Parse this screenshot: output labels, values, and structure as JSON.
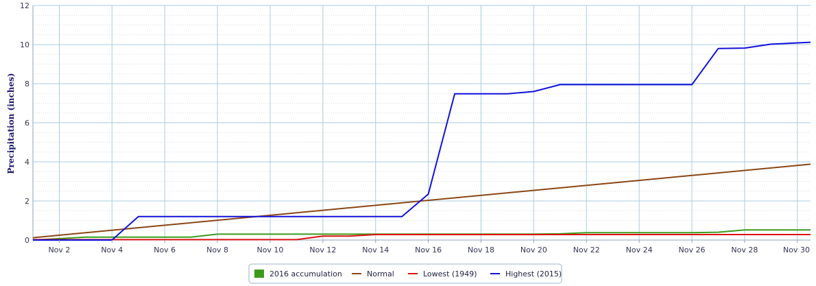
{
  "chart_data": {
    "type": "line",
    "ylabel": "Precipitation (inches)",
    "ylim": [
      0,
      12
    ],
    "xlim": [
      1,
      30.5
    ],
    "y_ticks": [
      "0",
      "2",
      "4",
      "6",
      "8",
      "10",
      "12"
    ],
    "x_ticks": [
      {
        "day": 2,
        "label": "Nov 2"
      },
      {
        "day": 4,
        "label": "Nov 4"
      },
      {
        "day": 6,
        "label": "Nov 6"
      },
      {
        "day": 8,
        "label": "Nov 8"
      },
      {
        "day": 10,
        "label": "Nov 10"
      },
      {
        "day": 12,
        "label": "Nov 12"
      },
      {
        "day": 14,
        "label": "Nov 14"
      },
      {
        "day": 16,
        "label": "Nov 16"
      },
      {
        "day": 18,
        "label": "Nov 18"
      },
      {
        "day": 20,
        "label": "Nov 20"
      },
      {
        "day": 22,
        "label": "Nov 22"
      },
      {
        "day": 24,
        "label": "Nov 24"
      },
      {
        "day": 26,
        "label": "Nov 26"
      },
      {
        "day": 28,
        "label": "Nov 28"
      },
      {
        "day": 30,
        "label": "Nov 30"
      }
    ],
    "grid": true,
    "legend_position": "bottom-center",
    "series": [
      {
        "name": "2016 accumulation",
        "color": "#3a9a1a",
        "points": [
          [
            1,
            0
          ],
          [
            3,
            0.15
          ],
          [
            4,
            0.15
          ],
          [
            6,
            0.15
          ],
          [
            7,
            0.15
          ],
          [
            8,
            0.3
          ],
          [
            10,
            0.3
          ],
          [
            15,
            0.3
          ],
          [
            20,
            0.3
          ],
          [
            21,
            0.32
          ],
          [
            22,
            0.38
          ],
          [
            26,
            0.38
          ],
          [
            27,
            0.4
          ],
          [
            28,
            0.52
          ],
          [
            30.5,
            0.52
          ]
        ]
      },
      {
        "name": "Normal",
        "color": "#8b4513",
        "points": [
          [
            1,
            0.12
          ],
          [
            30.5,
            3.88
          ]
        ]
      },
      {
        "name": "Lowest (1949)",
        "color": "#dd1111",
        "points": [
          [
            1,
            0.02
          ],
          [
            11,
            0.02
          ],
          [
            12,
            0.2
          ],
          [
            13,
            0.2
          ],
          [
            14,
            0.28
          ],
          [
            30.5,
            0.28
          ]
        ]
      },
      {
        "name": "Highest (2015)",
        "color": "#1010dd",
        "points": [
          [
            1,
            0
          ],
          [
            4,
            0
          ],
          [
            5,
            1.2
          ],
          [
            15,
            1.2
          ],
          [
            16,
            2.35
          ],
          [
            17,
            7.48
          ],
          [
            19,
            7.48
          ],
          [
            20,
            7.6
          ],
          [
            21,
            7.95
          ],
          [
            26,
            7.95
          ],
          [
            27,
            9.8
          ],
          [
            28,
            9.82
          ],
          [
            29,
            10.02
          ],
          [
            30.5,
            10.12
          ]
        ]
      }
    ]
  }
}
